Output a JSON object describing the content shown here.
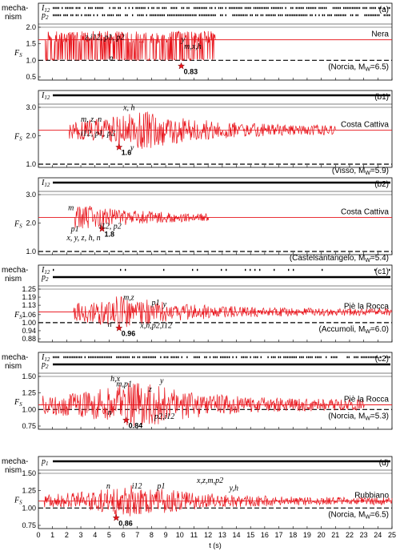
{
  "chart_data": {
    "type": "line",
    "xlabel": "t (s)",
    "xlim": [
      0,
      25
    ],
    "xticks": [
      "0",
      "1",
      "2",
      "3",
      "4",
      "5",
      "6",
      "7",
      "8",
      "9",
      "10",
      "11",
      "12",
      "13",
      "14",
      "15",
      "16",
      "17",
      "18",
      "19",
      "20",
      "21",
      "22",
      "23",
      "24",
      "25"
    ],
    "mechanism_row_label": [
      "mecha-",
      "nism"
    ],
    "colors": {
      "series": "#e8141b",
      "reference": "#000000",
      "grid": "#000000"
    },
    "panels": [
      {
        "id": "(a)",
        "site": "Nera",
        "event": "(Norcia, M",
        "event_sub": "W",
        "event_mag": "=6.5)",
        "ylabel": "F",
        "ylabel_sub": "S",
        "ylim": [
          0.5,
          2.0
        ],
        "yticks": [
          "0.5",
          "1.0",
          "1.5",
          "2.0"
        ],
        "mechanism_rows": [
          {
            "label": "I",
            "sub": "12",
            "density": "dense"
          },
          {
            "label": "p",
            "sub": "2",
            "density": "dense"
          }
        ],
        "static_fs": 1.62,
        "min_fs": 0.83,
        "min_time": 10.1,
        "min_label": "0.83",
        "series_style": "oscillating",
        "signal": {
          "start": 0.5,
          "end": 12.5,
          "amp_low": 0.52,
          "amp_high": 0.38,
          "floor": 1.0,
          "base": 1.62
        },
        "annotations": [
          {
            "text": "z,i12, p1, p2",
            "t": 3.3,
            "fs": 1.62
          },
          {
            "text": "y",
            "t": 10.1,
            "fs": 1.55
          },
          {
            "text": "m,x,h",
            "t": 10.3,
            "fs": 1.35
          },
          {
            "text": "n",
            "t": 5.0,
            "fs": 1.0
          }
        ]
      },
      {
        "id": "(b1)",
        "site": "Costa Cattiva",
        "event": "(Visso, M",
        "event_sub": "W",
        "event_mag": "=5.9)",
        "ylabel": "F",
        "ylabel_sub": "S",
        "ylim": [
          1.0,
          3.0
        ],
        "yticks": [
          "1.0",
          "2.0",
          "3.0"
        ],
        "mechanism_rows": [
          {
            "label": "I",
            "sub": "12",
            "density": "solid"
          }
        ],
        "static_fs": 2.2,
        "min_fs": 1.6,
        "min_time": 5.7,
        "min_label": "1.6",
        "series_style": "noisy",
        "signal": {
          "start": 2.2,
          "end": 21,
          "amp": 0.55,
          "peak_t": 7.5,
          "base": 2.2
        },
        "annotations": [
          {
            "text": "m, z, n",
            "t": 3.0,
            "fs": 2.5
          },
          {
            "text": "x, h",
            "t": 6.0,
            "fs": 2.9
          },
          {
            "text": "i12, p1, p2",
            "t": 3.0,
            "fs": 2.0
          },
          {
            "text": "y",
            "t": 6.5,
            "fs": 1.5
          }
        ]
      },
      {
        "id": "(b2)",
        "site": "Costa Cattiva",
        "event": "(Castelsantangelo, M",
        "event_sub": "W",
        "event_mag": "=5.4)",
        "ylabel": "F",
        "ylabel_sub": "S",
        "ylim": [
          1.0,
          3.0
        ],
        "yticks": [
          "1.0",
          "2.0",
          "3.0"
        ],
        "mechanism_rows": [
          {
            "label": "I",
            "sub": "12",
            "density": "solid"
          }
        ],
        "static_fs": 2.2,
        "min_fs": 1.8,
        "min_time": 4.5,
        "min_label": "1.8",
        "series_style": "noisy",
        "signal": {
          "start": 2.6,
          "end": 12,
          "amp": 0.35,
          "peak_t": 3.3,
          "base": 2.2
        },
        "annotations": [
          {
            "text": "m",
            "t": 2.1,
            "fs": 2.45
          },
          {
            "text": "p1",
            "t": 2.3,
            "fs": 1.7
          },
          {
            "text": "i12, p2",
            "t": 4.3,
            "fs": 1.8
          },
          {
            "text": "x, y, z, h, n",
            "t": 2.0,
            "fs": 1.4
          }
        ]
      },
      {
        "id": "(c1)",
        "site": "Piè la Rocca",
        "event": "(Accumoli, M",
        "event_sub": "W",
        "event_mag": "=6.0)",
        "ylabel": "F",
        "ylabel_sub": "S",
        "ylim": [
          0.88,
          1.25
        ],
        "yticks": [
          "0.88",
          "0.94",
          "1.00",
          "1.06",
          "1.13",
          "1.19",
          "1.25"
        ],
        "mechanism_rows": [
          {
            "label": "I",
            "sub": "12",
            "density": "sparse"
          },
          {
            "label": "p",
            "sub": "2",
            "density": "solid"
          }
        ],
        "static_fs": 1.08,
        "min_fs": 0.96,
        "min_time": 5.7,
        "min_label": "0.96",
        "series_style": "noisy",
        "signal": {
          "start": 2.5,
          "end": 25,
          "amp": 0.1,
          "peak_t": 6.0,
          "base": 1.08
        },
        "annotations": [
          {
            "text": "m,z",
            "t": 6.0,
            "fs": 1.17
          },
          {
            "text": "p1",
            "t": 8.0,
            "fs": 1.13
          },
          {
            "text": "y",
            "t": 8.8,
            "fs": 1.12
          },
          {
            "text": "n",
            "t": 4.9,
            "fs": 0.97
          },
          {
            "text": "x,h,p2,i12",
            "t": 7.2,
            "fs": 0.96
          }
        ]
      },
      {
        "id": "(c2)",
        "site": "Piè la Rocca",
        "event": "(Norcia, M",
        "event_sub": "W",
        "event_mag": "=5.3)",
        "ylabel": "F",
        "ylabel_sub": "S",
        "ylim": [
          0.75,
          1.5
        ],
        "yticks": [
          "0.75",
          "1.00",
          "1.25",
          "1.50"
        ],
        "mechanism_rows": [
          {
            "label": "I",
            "sub": "12",
            "density": "dense"
          },
          {
            "label": "p",
            "sub": "2",
            "density": "solid"
          }
        ],
        "static_fs": 1.07,
        "min_fs": 0.84,
        "min_time": 6.2,
        "min_label": "0.84",
        "series_style": "noisy",
        "signal": {
          "start": 0.3,
          "end": 23,
          "amp": 0.3,
          "peak_t": 7.0,
          "base": 1.07
        },
        "annotations": [
          {
            "text": "h,x",
            "t": 5.1,
            "fs": 1.43
          },
          {
            "text": "m,p1",
            "t": 5.5,
            "fs": 1.35
          },
          {
            "text": "z",
            "t": 7.8,
            "fs": 1.27
          },
          {
            "text": "y",
            "t": 8.6,
            "fs": 1.4
          },
          {
            "text": "n",
            "t": 4.9,
            "fs": 0.92
          },
          {
            "text": "p2,i12",
            "t": 8.2,
            "fs": 0.86
          }
        ]
      },
      {
        "id": "(d)",
        "site": "Rubbiano",
        "event": "(Norcia, M",
        "event_sub": "W",
        "event_mag": "=6.5)",
        "ylabel": "F",
        "ylabel_sub": "S",
        "ylim": [
          0.75,
          1.5
        ],
        "yticks": [
          "0.75",
          "1.00",
          "1.25",
          "1.50"
        ],
        "mechanism_rows": [
          {
            "label": "p",
            "sub": "1",
            "density": "solid"
          }
        ],
        "static_fs": 1.1,
        "min_fs": 0.86,
        "min_time": 5.5,
        "min_label": "0.86",
        "series_style": "noisy",
        "signal": {
          "start": 0.4,
          "end": 25,
          "amp": 0.2,
          "peak_t": 7.0,
          "base": 1.1
        },
        "annotations": [
          {
            "text": "n",
            "t": 4.8,
            "fs": 1.28
          },
          {
            "text": "i12",
            "t": 6.6,
            "fs": 1.28
          },
          {
            "text": "p1",
            "t": 8.4,
            "fs": 1.28
          },
          {
            "text": "x,z,m,p2",
            "t": 11.2,
            "fs": 1.36
          },
          {
            "text": "y,h",
            "t": 13.5,
            "fs": 1.25
          }
        ]
      }
    ]
  }
}
